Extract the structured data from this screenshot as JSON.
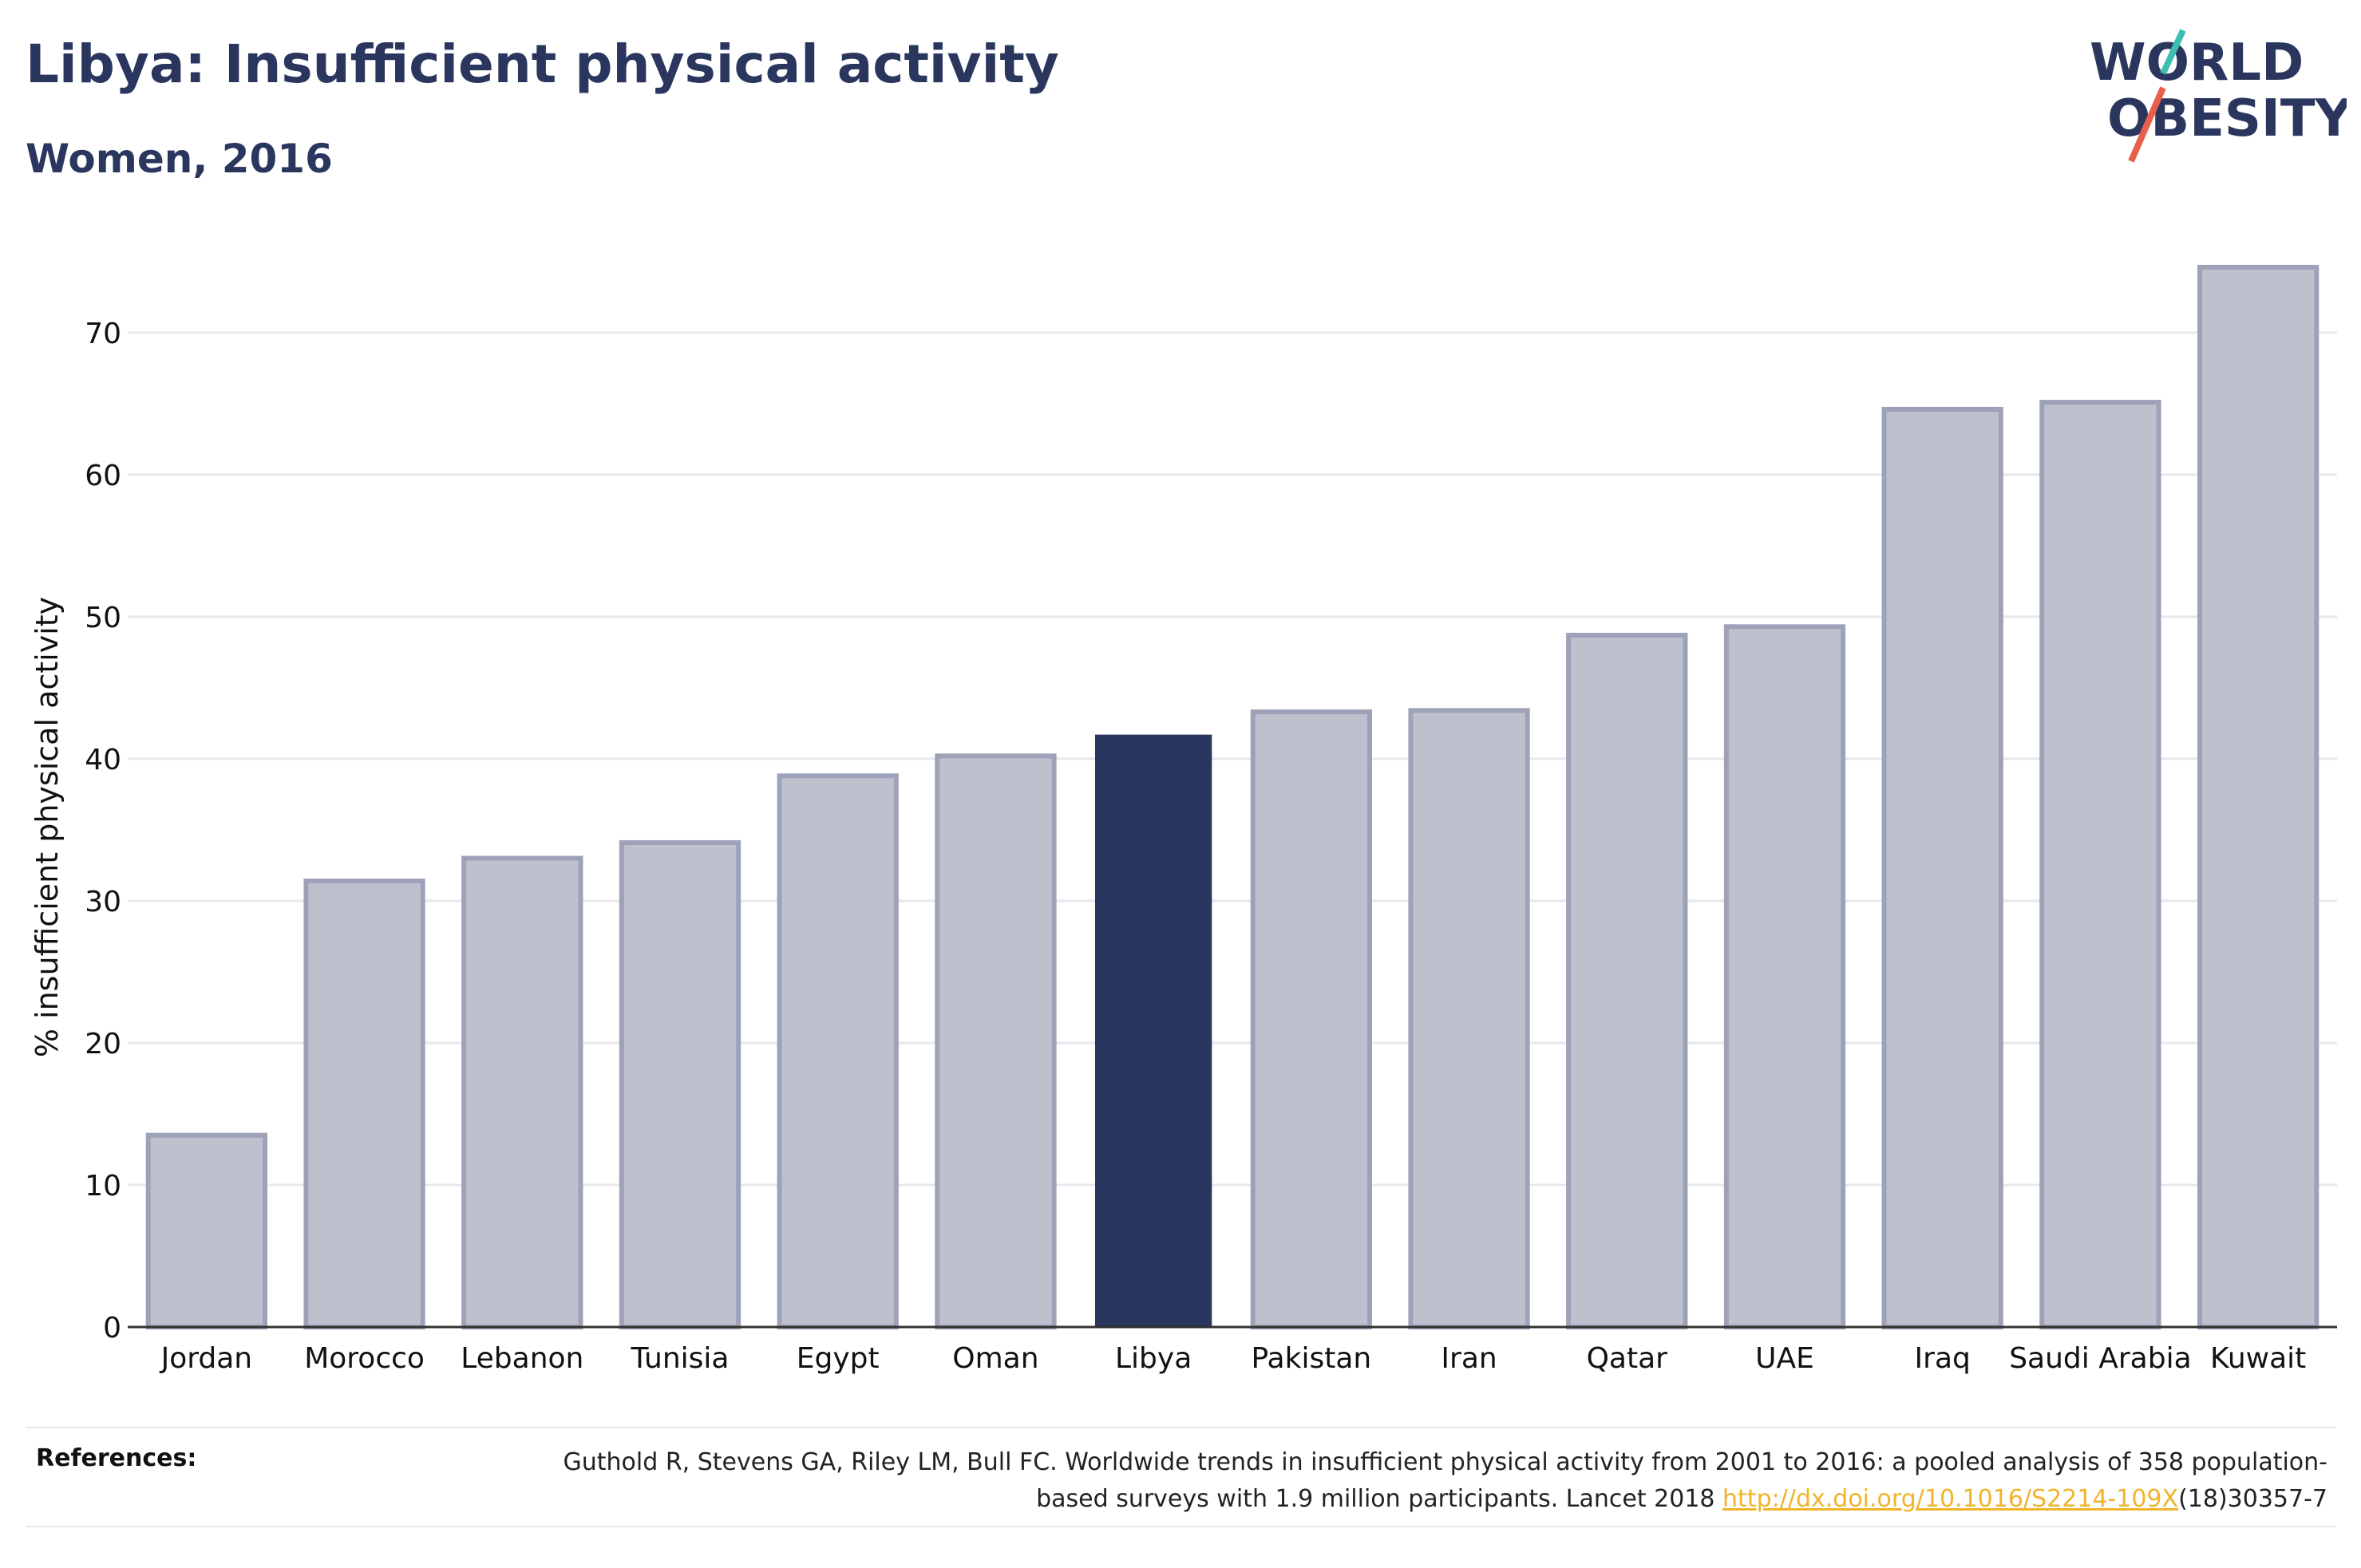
{
  "header": {
    "title": "Libya: Insufficient physical activity",
    "subtitle": "Women, 2016"
  },
  "logo": {
    "line1": "WORLD",
    "line2": "OBESITY",
    "accent_colors": [
      "#3cbfb0",
      "#e8604c"
    ]
  },
  "chart_data": {
    "type": "bar",
    "categories": [
      "Jordan",
      "Morocco",
      "Lebanon",
      "Tunisia",
      "Egypt",
      "Oman",
      "Libya",
      "Pakistan",
      "Iran",
      "Qatar",
      "UAE",
      "Iraq",
      "Saudi Arabia",
      "Kuwait"
    ],
    "values": [
      13.5,
      31.4,
      33.0,
      34.1,
      38.8,
      40.2,
      41.7,
      43.3,
      43.4,
      48.7,
      49.3,
      64.6,
      65.1,
      74.6
    ],
    "highlight": "Libya",
    "ylabel": "% insufficient physical activity",
    "xlabel": "",
    "ylim": [
      0,
      76
    ],
    "yticks": [
      0,
      10,
      20,
      30,
      40,
      50,
      60,
      70
    ],
    "grid": true,
    "colors": {
      "bar": "#bec1cd",
      "bar_border": "#9ea2b8",
      "highlight": "#2b365e",
      "axis": "#333333",
      "grid": "#e8e8ec"
    }
  },
  "references": {
    "label": "References:",
    "text_before": "Guthold R, Stevens GA, Riley LM, Bull FC. Worldwide trends in insufficient physical activity from 2001 to 2016: a pooled analysis of 358 population-based surveys with 1.9 million participants. Lancet 2018 ",
    "link": "http://dx.doi.org/10.1016/S2214-109X",
    "text_after": "(18)30357-7"
  }
}
